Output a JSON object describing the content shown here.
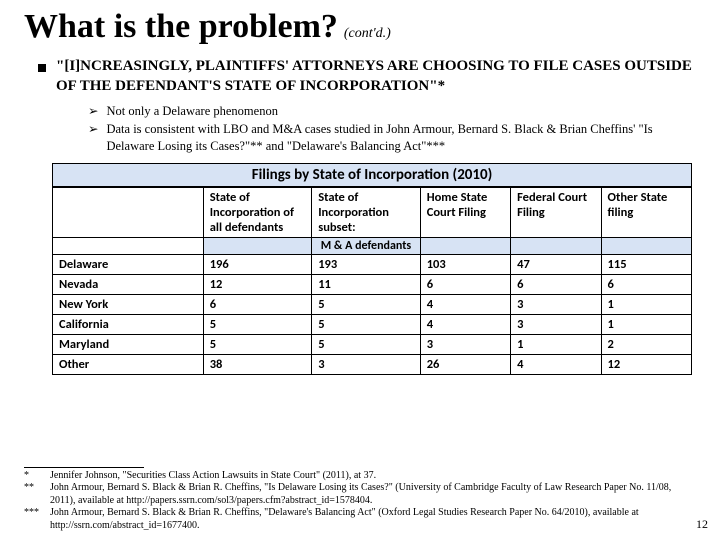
{
  "title": "What is the problem?",
  "contd": "(cont'd.)",
  "mainBullet": "\"[I]NCREASINGLY, PLAINTIFFS' ATTORNEYS ARE CHOOSING TO FILE CASES OUTSIDE OF THE DEFENDANT'S STATE OF INCORPORATION\"*",
  "sub1": "Not only a Delaware phenomenon",
  "sub2": "Data is consistent with LBO and M&A cases studied in John Armour, Bernard S. Black & Brian Cheffins' \"Is Delaware Losing its Cases?\"** and \"Delaware's Balancing Act\"***",
  "table": {
    "title": "Filings by State of Incorporation (2010)",
    "headers": [
      "",
      "State of Incorporation of all defendants",
      "State of Incorporation subset:",
      "Home State Court Filing",
      "Federal Court Filing",
      "Other State filing"
    ],
    "band": [
      "",
      "",
      "M & A defendants",
      "",
      "",
      ""
    ],
    "rows": [
      [
        "Delaware",
        "196",
        "193",
        "103",
        "47",
        "115"
      ],
      [
        "Nevada",
        "12",
        "11",
        "6",
        "6",
        "6"
      ],
      [
        "New York",
        "6",
        "5",
        "4",
        "3",
        "1"
      ],
      [
        "California",
        "5",
        "5",
        "4",
        "3",
        "1"
      ],
      [
        "Maryland",
        "5",
        "5",
        "3",
        "1",
        "2"
      ],
      [
        "Other",
        "38",
        "3",
        "26",
        "4",
        "12"
      ]
    ]
  },
  "footnotes": [
    {
      "mark": "*",
      "text": "Jennifer Johnson, \"Securities Class Action Lawsuits in State Court\" (2011), at 37."
    },
    {
      "mark": "**",
      "text": "John Armour, Bernard S. Black & Brian R. Cheffins, \"Is Delaware Losing its Cases?\" (University of Cambridge Faculty of Law Research Paper No. 11/08, 2011), available at http://papers.ssrn.com/sol3/papers.cfm?abstract_id=1578404."
    },
    {
      "mark": "***",
      "text": "John Armour, Bernard S. Black & Brian R. Cheffins, \"Delaware's Balancing Act\" (Oxford Legal Studies Research Paper No. 64/2010), available at http://ssrn.com/abstract_id=1677400."
    }
  ],
  "pageNumber": "12"
}
